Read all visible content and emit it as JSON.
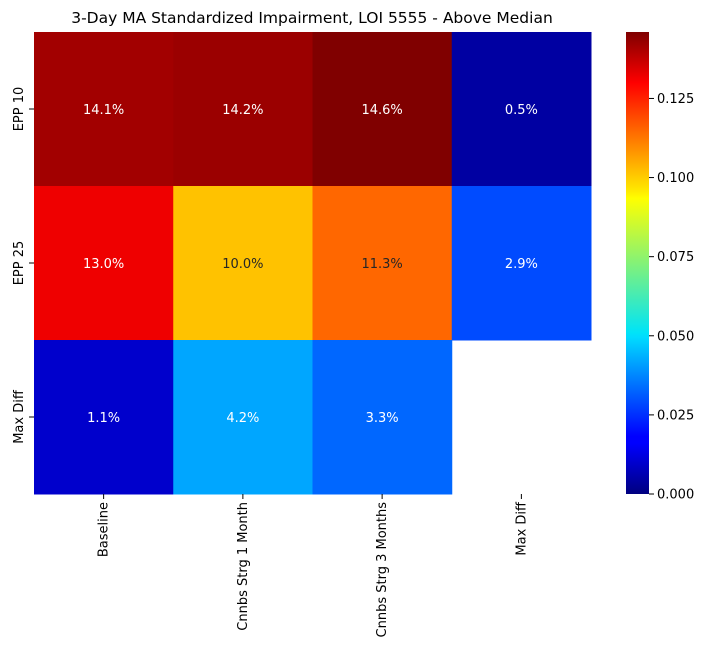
{
  "chart_data": {
    "type": "heatmap",
    "title": "3-Day MA Standardized Impairment, LOI 5555 - Above Median",
    "rows": [
      "EPP 10",
      "EPP 25",
      "Max Diff"
    ],
    "columns": [
      "Baseline",
      "Cnnbs Strg 1 Month",
      "Cnnbs Strg 3 Months",
      "Max Diff"
    ],
    "values": [
      [
        0.141,
        0.142,
        0.146,
        0.005
      ],
      [
        0.13,
        0.1,
        0.113,
        0.029
      ],
      [
        0.011,
        0.042,
        0.033,
        null
      ]
    ],
    "labels": [
      [
        "14.1%",
        "14.2%",
        "14.6%",
        "0.5%"
      ],
      [
        "13.0%",
        "10.0%",
        "11.3%",
        "2.9%"
      ],
      [
        "1.1%",
        "4.2%",
        "3.3%",
        ""
      ]
    ],
    "colormap": "jet",
    "vmin": 0.0,
    "vmax": 0.146,
    "colorbar_ticks": [
      "0.000",
      "0.025",
      "0.050",
      "0.075",
      "0.100",
      "0.125"
    ],
    "colorbar_tick_values": [
      0.0,
      0.025,
      0.05,
      0.075,
      0.1,
      0.125
    ],
    "grid": false,
    "legend": "colorbar-right"
  }
}
